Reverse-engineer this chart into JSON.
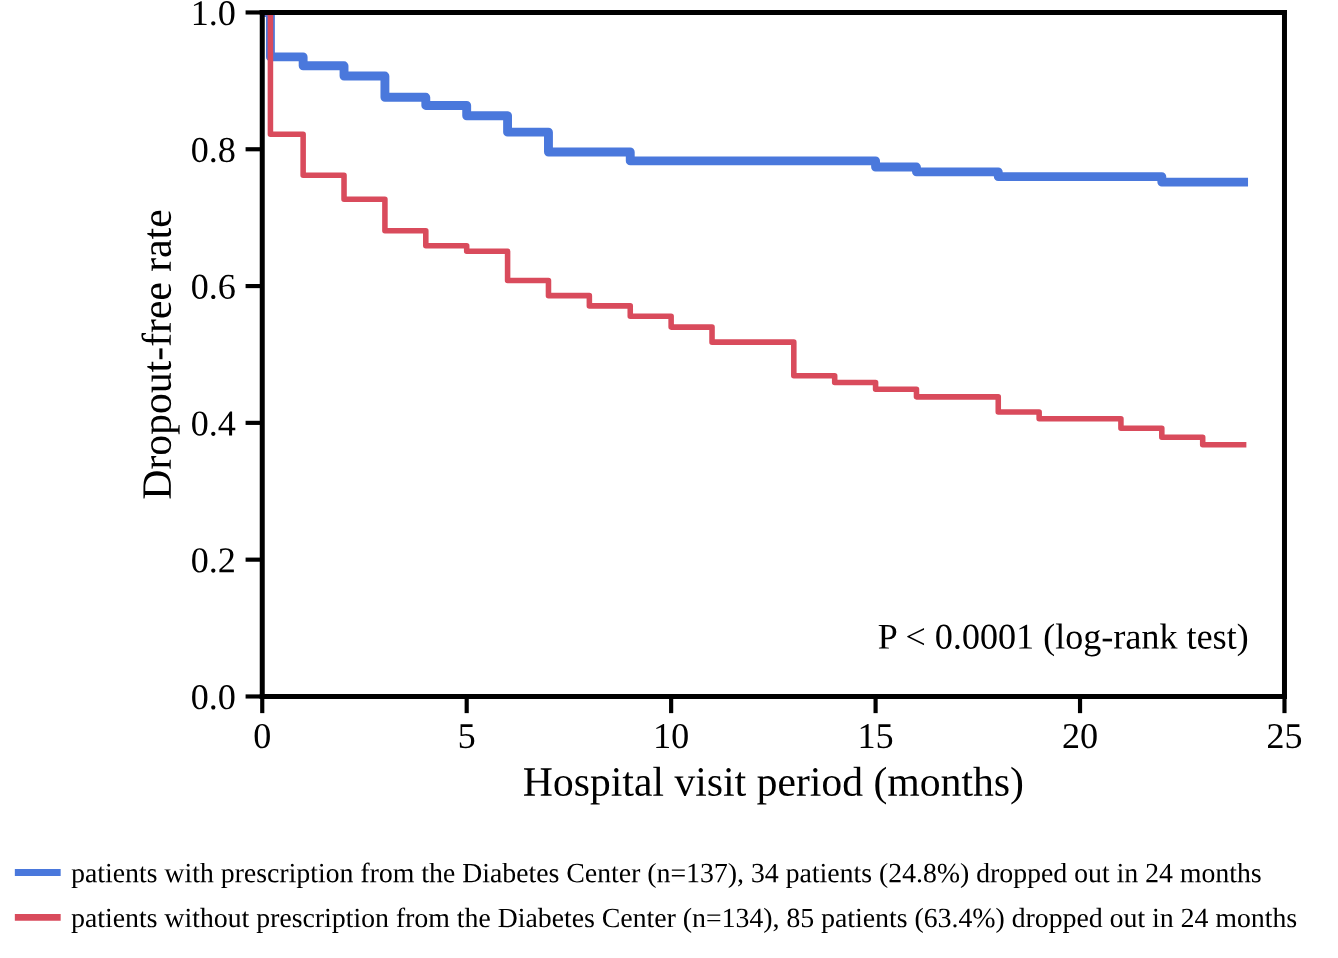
{
  "chart_data": {
    "type": "step",
    "xlabel": "Hospital visit period (months)",
    "ylabel": "Dropout-free rate",
    "xlim": [
      0,
      25
    ],
    "xticks": [
      0,
      5,
      10,
      15,
      20,
      25
    ],
    "ylim": [
      0,
      1.0
    ],
    "yticks": [
      {
        "value": 0,
        "label": "0.0"
      },
      {
        "value": 0.2,
        "label": "0.2"
      },
      {
        "value": 0.4,
        "label": "0.4"
      },
      {
        "value": 0.6,
        "label": "0.6"
      },
      {
        "value": 0.8,
        "label": "0.8"
      },
      {
        "value": 1.0,
        "label": "1.0"
      }
    ],
    "series": [
      {
        "name": "patients with prescription from the Diabetes Center (n=137), 34 patients (24.8%) dropped out in 24 months",
        "color": "#4a78dc",
        "x": [
          0,
          0.2,
          1,
          2,
          3,
          4,
          5,
          6,
          7,
          9,
          15,
          16,
          18,
          22,
          24
        ],
        "values": [
          1.0,
          0.935,
          0.922,
          0.907,
          0.876,
          0.864,
          0.849,
          0.825,
          0.796,
          0.783,
          0.774,
          0.767,
          0.76,
          0.752,
          0.752
        ]
      },
      {
        "name": "patients without prescription from the Diabetes Center (n=134), 85 patients (63.4%) dropped out in 24 months",
        "color": "#d94b5c",
        "x": [
          0,
          0.2,
          1,
          2,
          3,
          4,
          5,
          6,
          7,
          8,
          9,
          10,
          11,
          13,
          14,
          15,
          16,
          18,
          19,
          21,
          22,
          23,
          24
        ],
        "values": [
          1.0,
          0.822,
          0.762,
          0.727,
          0.681,
          0.659,
          0.651,
          0.608,
          0.586,
          0.571,
          0.556,
          0.54,
          0.518,
          0.469,
          0.459,
          0.449,
          0.438,
          0.416,
          0.406,
          0.392,
          0.379,
          0.368,
          0.368
        ]
      }
    ],
    "annotations": [
      "P < 0.0001 (log-rank test)"
    ],
    "legend": "bottom",
    "grid": false,
    "marker": "none",
    "line_style": "solid"
  }
}
